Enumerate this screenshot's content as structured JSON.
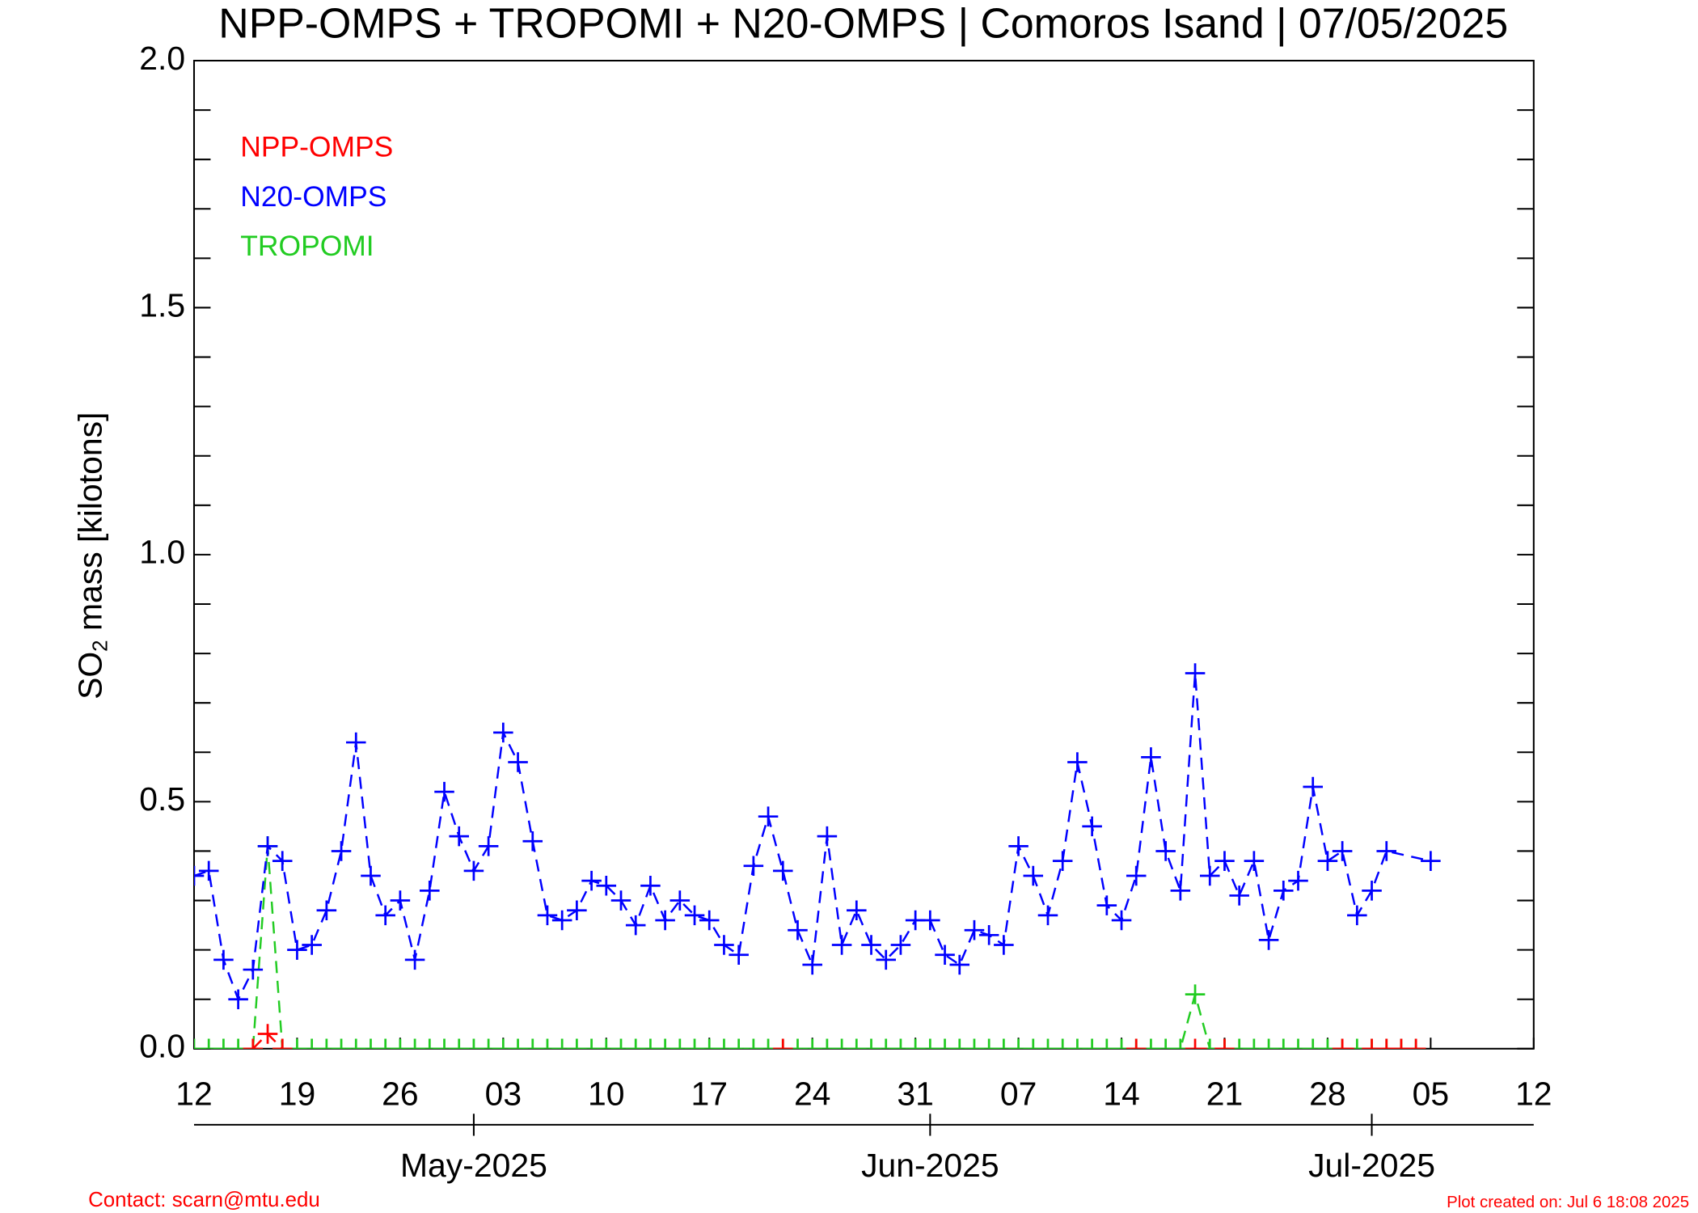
{
  "chart_data": {
    "type": "line",
    "title": "NPP-OMPS + TROPOMI + N20-OMPS | Comoros Isand | 07/05/2025",
    "ylabel_parts": [
      "SO",
      "2",
      " mass [kilotons]"
    ],
    "contact": "Contact: scarn@mtu.edu",
    "created": "Plot created on: Jul  6 18:08 2025",
    "ylim": [
      0,
      2
    ],
    "yticks": [
      {
        "value": 0,
        "label": "0.0"
      },
      0.5,
      {
        "value": 1,
        "label": "1.0"
      },
      1.5,
      {
        "value": 2,
        "label": "2.0"
      }
    ],
    "yminorticks": [
      0.1,
      0.2,
      0.3,
      0.4,
      0.6,
      0.7,
      0.8,
      0.9,
      1.1,
      1.2,
      1.3,
      1.4,
      1.6,
      1.7,
      1.8,
      1.9
    ],
    "xlim": [
      "2025-04-12",
      "2025-07-12"
    ],
    "xticks": [
      {
        "value": "2025-04-12",
        "label": "12"
      },
      {
        "value": "2025-04-19",
        "label": "19"
      },
      {
        "value": "2025-04-26",
        "label": "26"
      },
      {
        "value": "2025-05-03",
        "label": "03"
      },
      {
        "value": "2025-05-10",
        "label": "10"
      },
      {
        "value": "2025-05-17",
        "label": "17"
      },
      {
        "value": "2025-05-24",
        "label": "24"
      },
      {
        "value": "2025-05-31",
        "label": "31"
      },
      {
        "value": "2025-06-07",
        "label": "07"
      },
      {
        "value": "2025-06-14",
        "label": "14"
      },
      {
        "value": "2025-06-21",
        "label": "21"
      },
      {
        "value": "2025-06-28",
        "label": "28"
      },
      {
        "value": "2025-07-05",
        "label": "05"
      },
      {
        "value": "2025-07-12",
        "label": "12"
      }
    ],
    "xmonthticks": [
      {
        "value": "2025-05-01",
        "label": "May-2025"
      },
      {
        "value": "2025-06-01",
        "label": "Jun-2025"
      },
      {
        "value": "2025-07-01",
        "label": "Jul-2025"
      }
    ],
    "series": [
      {
        "name": "NPP-OMPS",
        "color": "#ff0000",
        "x": [
          "2025-04-16",
          "2025-04-17",
          "2025-04-18",
          "2025-05-22",
          "2025-06-15",
          "2025-06-19",
          "2025-06-21",
          "2025-06-29",
          "2025-07-01",
          "2025-07-02",
          "2025-07-03",
          "2025-07-04"
        ],
        "values": [
          0,
          0.03,
          0,
          0,
          0,
          0,
          0,
          0,
          0,
          0,
          0,
          0
        ]
      },
      {
        "name": "N20-OMPS",
        "color": "#0000ff",
        "x": [
          "2025-04-12",
          "2025-04-13",
          "2025-04-14",
          "2025-04-15",
          "2025-04-16",
          "2025-04-17",
          "2025-04-18",
          "2025-04-19",
          "2025-04-20",
          "2025-04-21",
          "2025-04-22",
          "2025-04-23",
          "2025-04-24",
          "2025-04-25",
          "2025-04-26",
          "2025-04-27",
          "2025-04-28",
          "2025-04-29",
          "2025-04-30",
          "2025-05-01",
          "2025-05-02",
          "2025-05-03",
          "2025-05-04",
          "2025-05-05",
          "2025-05-06",
          "2025-05-07",
          "2025-05-08",
          "2025-05-09",
          "2025-05-10",
          "2025-05-11",
          "2025-05-12",
          "2025-05-13",
          "2025-05-14",
          "2025-05-15",
          "2025-05-16",
          "2025-05-17",
          "2025-05-18",
          "2025-05-19",
          "2025-05-20",
          "2025-05-21",
          "2025-05-22",
          "2025-05-23",
          "2025-05-24",
          "2025-05-25",
          "2025-05-26",
          "2025-05-27",
          "2025-05-28",
          "2025-05-29",
          "2025-05-30",
          "2025-05-31",
          "2025-06-01",
          "2025-06-02",
          "2025-06-03",
          "2025-06-04",
          "2025-06-05",
          "2025-06-06",
          "2025-06-07",
          "2025-06-08",
          "2025-06-09",
          "2025-06-10",
          "2025-06-11",
          "2025-06-12",
          "2025-06-13",
          "2025-06-14",
          "2025-06-15",
          "2025-06-16",
          "2025-06-17",
          "2025-06-18",
          "2025-06-19",
          "2025-06-20",
          "2025-06-21",
          "2025-06-22",
          "2025-06-23",
          "2025-06-24",
          "2025-06-25",
          "2025-06-26",
          "2025-06-27",
          "2025-06-28",
          "2025-06-29",
          "2025-06-30",
          "2025-07-01",
          "2025-07-02",
          "2025-07-05"
        ],
        "values": [
          0.35,
          0.36,
          0.18,
          0.1,
          0.16,
          0.41,
          0.38,
          0.2,
          0.21,
          0.28,
          0.4,
          0.62,
          0.35,
          0.27,
          0.3,
          0.18,
          0.32,
          0.52,
          0.43,
          0.36,
          0.41,
          0.64,
          0.58,
          0.42,
          0.27,
          0.26,
          0.28,
          0.34,
          0.33,
          0.3,
          0.25,
          0.33,
          0.26,
          0.3,
          0.27,
          0.26,
          0.21,
          0.19,
          0.37,
          0.47,
          0.36,
          0.24,
          0.17,
          0.43,
          0.21,
          0.28,
          0.21,
          0.18,
          0.21,
          0.26,
          0.26,
          0.19,
          0.17,
          0.24,
          0.23,
          0.21,
          0.41,
          0.35,
          0.27,
          0.38,
          0.58,
          0.45,
          0.29,
          0.26,
          0.35,
          0.59,
          0.4,
          0.32,
          0.76,
          0.35,
          0.38,
          0.31,
          0.38,
          0.22,
          0.32,
          0.34,
          0.53,
          0.38,
          0.4,
          0.27,
          0.32,
          0.4,
          0.38
        ]
      },
      {
        "name": "TROPOMI",
        "color": "#22cc22",
        "x": [
          "2025-04-12",
          "2025-04-13",
          "2025-04-14",
          "2025-04-15",
          "2025-04-16",
          "2025-04-17",
          "2025-04-18",
          "2025-04-19",
          "2025-04-20",
          "2025-04-21",
          "2025-04-22",
          "2025-04-23",
          "2025-04-24",
          "2025-04-25",
          "2025-04-26",
          "2025-04-27",
          "2025-04-28",
          "2025-04-29",
          "2025-04-30",
          "2025-05-01",
          "2025-05-02",
          "2025-05-03",
          "2025-05-04",
          "2025-05-05",
          "2025-05-06",
          "2025-05-07",
          "2025-05-08",
          "2025-05-09",
          "2025-05-10",
          "2025-05-11",
          "2025-05-12",
          "2025-05-13",
          "2025-05-14",
          "2025-05-15",
          "2025-05-16",
          "2025-05-17",
          "2025-05-18",
          "2025-05-19",
          "2025-05-20",
          "2025-05-21",
          "2025-05-22",
          "2025-05-23",
          "2025-05-24",
          "2025-05-25",
          "2025-05-26",
          "2025-05-27",
          "2025-05-28",
          "2025-05-29",
          "2025-05-30",
          "2025-05-31",
          "2025-06-01",
          "2025-06-02",
          "2025-06-03",
          "2025-06-04",
          "2025-06-05",
          "2025-06-06",
          "2025-06-07",
          "2025-06-08",
          "2025-06-09",
          "2025-06-10",
          "2025-06-11",
          "2025-06-12",
          "2025-06-13",
          "2025-06-14",
          "2025-06-15",
          "2025-06-16",
          "2025-06-17",
          "2025-06-18",
          "2025-06-19",
          "2025-06-20",
          "2025-06-21",
          "2025-06-22",
          "2025-06-23",
          "2025-06-24",
          "2025-06-25",
          "2025-06-26",
          "2025-06-27",
          "2025-06-28",
          "2025-06-29",
          "2025-06-30",
          "2025-07-01",
          "2025-07-02",
          "2025-07-03",
          "2025-07-04"
        ],
        "values": [
          0,
          0,
          0,
          0,
          0,
          0.41,
          0,
          0,
          0,
          0,
          0,
          0,
          0,
          0,
          0,
          0,
          0,
          0,
          0,
          0,
          0,
          0,
          0,
          0,
          0,
          0,
          0,
          0,
          0,
          0,
          0,
          0,
          0,
          0,
          0,
          0,
          0,
          0,
          0,
          0,
          0,
          0,
          0,
          0,
          0,
          0,
          0,
          0,
          0,
          0,
          0,
          0,
          0,
          0,
          0,
          0,
          0,
          0,
          0,
          0,
          0,
          0,
          0,
          0,
          0,
          0,
          0,
          0,
          0.11,
          0,
          0,
          0,
          0,
          0,
          0,
          0,
          0,
          0,
          0,
          0,
          0,
          0,
          0,
          0
        ]
      }
    ]
  }
}
